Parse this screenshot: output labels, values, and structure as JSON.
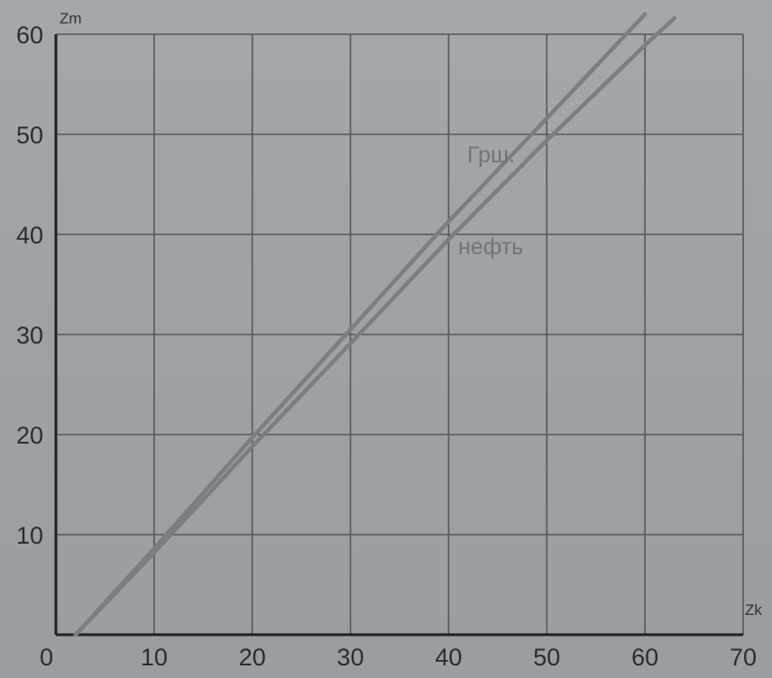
{
  "chart_data": {
    "type": "line",
    "xlabel": "Zk",
    "ylabel": "Zm",
    "xlim": [
      0,
      70
    ],
    "ylim": [
      0,
      60
    ],
    "x_ticks": [
      "0",
      "10",
      "20",
      "30",
      "40",
      "50",
      "60",
      "70"
    ],
    "y_ticks": [
      "10",
      "20",
      "30",
      "40",
      "50",
      "60"
    ],
    "grid": true,
    "series": [
      {
        "name": "Грш.",
        "x": [
          2,
          10,
          20,
          30,
          40,
          50,
          60
        ],
        "y": [
          0,
          8.6,
          19.7,
          30.5,
          41.3,
          51.6,
          62
        ],
        "color": "#7b7f83"
      },
      {
        "name": "нефть",
        "x": [
          2,
          10,
          20,
          30,
          40,
          50,
          60,
          63
        ],
        "y": [
          0,
          8.2,
          18.8,
          29.1,
          39.5,
          49.4,
          58.9,
          61.6
        ],
        "color": "#7b7f83"
      }
    ]
  }
}
